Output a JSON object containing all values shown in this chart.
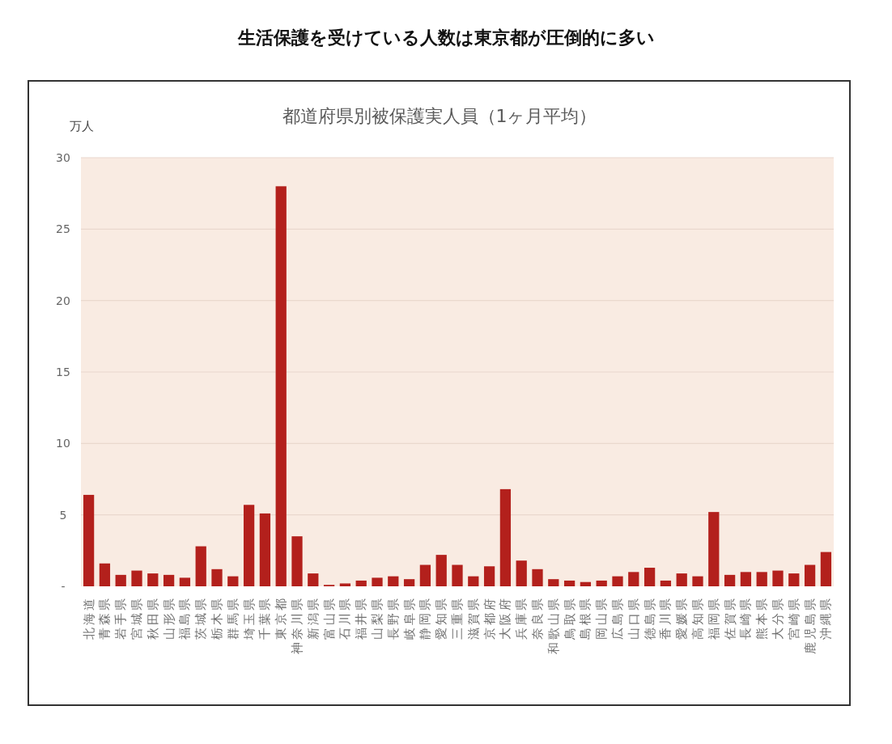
{
  "chart_data": {
    "type": "bar",
    "title": "生活保護を受けている人数は東京都が圧倒的に多い",
    "subtitle": "都道府県別被保護実人員（1ヶ月平均）",
    "ylabel": "万人",
    "categories": [
      "北海道",
      "青森県",
      "岩手県",
      "宮城県",
      "秋田県",
      "山形県",
      "福島県",
      "茨城県",
      "栃木県",
      "群馬県",
      "埼玉県",
      "千葉県",
      "東京都",
      "神奈川県",
      "新潟県",
      "富山県",
      "石川県",
      "福井県",
      "山梨県",
      "長野県",
      "岐阜県",
      "静岡県",
      "愛知県",
      "三重県",
      "滋賀県",
      "京都府",
      "大阪府",
      "兵庫県",
      "奈良県",
      "和歌山県",
      "鳥取県",
      "島根県",
      "岡山県",
      "広島県",
      "山口県",
      "徳島県",
      "香川県",
      "愛媛県",
      "高知県",
      "福岡県",
      "佐賀県",
      "長崎県",
      "熊本県",
      "大分県",
      "宮崎県",
      "鹿児島県",
      "沖縄県"
    ],
    "values": [
      6.4,
      1.6,
      0.8,
      1.1,
      0.9,
      0.8,
      0.6,
      2.8,
      1.2,
      0.7,
      5.7,
      5.1,
      28.0,
      3.5,
      0.9,
      0.1,
      0.2,
      0.4,
      0.6,
      0.7,
      0.5,
      1.5,
      2.2,
      1.5,
      0.7,
      1.4,
      6.8,
      1.8,
      1.2,
      0.5,
      0.4,
      0.3,
      0.4,
      0.7,
      1.0,
      1.3,
      0.4,
      0.9,
      0.7,
      5.2,
      0.8,
      1.0,
      1.0,
      1.1,
      0.9,
      1.5,
      2.4
    ],
    "color": "#b3201c",
    "ylim": [
      0,
      30
    ],
    "yticks": [
      {
        "value": 0,
        "label": "-"
      },
      5,
      10,
      15,
      20,
      25,
      30
    ],
    "grid": "y"
  }
}
